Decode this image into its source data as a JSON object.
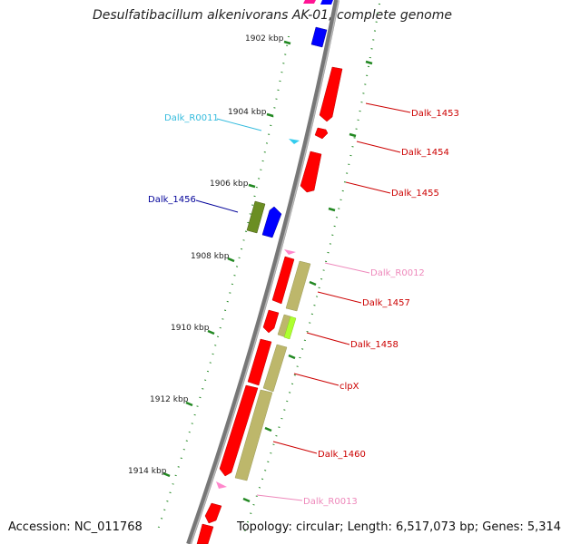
{
  "title": "Desulfatibacillum alkenivorans AK-01, complete genome",
  "accession_text": "Accession: NC_011768",
  "summary_text": "Topology: circular; Length: 6,517,073 bp; Genes: 5,314",
  "ticks": [
    "1902 kbp",
    "1904 kbp",
    "1906 kbp",
    "1908 kbp",
    "1910 kbp",
    "1912 kbp",
    "1914 kbp"
  ],
  "genes": [
    {
      "name": "Dalk_R0011",
      "color": "#33bbdd"
    },
    {
      "name": "Dalk_1453",
      "color": "#cc0000"
    },
    {
      "name": "Dalk_1454",
      "color": "#cc0000"
    },
    {
      "name": "Dalk_1455",
      "color": "#cc0000"
    },
    {
      "name": "Dalk_1456",
      "color": "#000099"
    },
    {
      "name": "Dalk_R0012",
      "color": "#ee88bb"
    },
    {
      "name": "Dalk_1457",
      "color": "#cc0000"
    },
    {
      "name": "Dalk_1458",
      "color": "#cc0000"
    },
    {
      "name": "clpX",
      "color": "#cc0000"
    },
    {
      "name": "Dalk_1460",
      "color": "#cc0000"
    },
    {
      "name": "Dalk_R0013",
      "color": "#ee88bb"
    }
  ],
  "colors": {
    "backbone": "#888888",
    "tick": "#228822",
    "cds_red": "#ff0000",
    "cds_blue": "#0000ff",
    "cds_olive": "#6b8e23",
    "cds_tan": "#bdb76b",
    "cds_lime": "#adff2f",
    "cds_magenta": "#ff1493",
    "rna_pink": "#ff88cc",
    "rna_cyan": "#33ccee"
  }
}
